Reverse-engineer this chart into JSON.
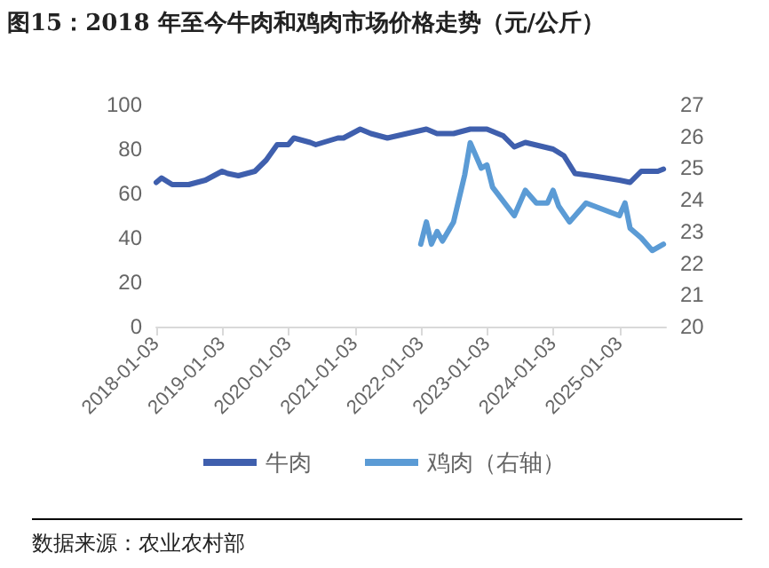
{
  "chart_data": {
    "type": "line",
    "title": "图15：2018 年至今牛肉和鸡肉市场价格走势（元/公斤）",
    "annotations": [
      "数据来源：农业农村部"
    ],
    "xlim": [
      "2018-01-03",
      "2025-09-15"
    ],
    "xticks": [
      "2018-01-03",
      "2019-01-03",
      "2020-01-03",
      "2021-01-03",
      "2022-01-03",
      "2023-01-03",
      "2024-01-03",
      "2025-01-03"
    ],
    "ylim": [
      0,
      100
    ],
    "yticks": [
      0,
      20,
      40,
      60,
      80,
      100
    ],
    "y2lim": [
      20,
      27
    ],
    "y2ticks": [
      20,
      21,
      22,
      23,
      24,
      25,
      26,
      27
    ],
    "grid": false,
    "legend": "bottom",
    "marker": "none",
    "line_style": "solid",
    "series": [
      {
        "name": "牛肉",
        "color": "#3f5fad",
        "x": [
          "2018-01-03",
          "2018-02",
          "2018-04",
          "2018-07",
          "2018-10",
          "2019-01",
          "2019-02",
          "2019-04",
          "2019-07",
          "2019-09",
          "2019-11",
          "2020-01",
          "2020-02",
          "2020-05",
          "2020-06",
          "2020-10",
          "2020-11",
          "2021-02",
          "2021-04",
          "2021-07",
          "2022-02",
          "2022-04",
          "2022-07",
          "2022-10",
          "2023-01",
          "2023-04",
          "2023-06",
          "2023-08",
          "2024-01",
          "2024-03",
          "2024-05",
          "2024-08",
          "2025-01",
          "2025-03",
          "2025-05",
          "2025-08",
          "2025-09"
        ],
        "values": [
          65,
          67,
          64,
          64,
          66,
          70,
          69,
          68,
          70,
          75,
          82,
          82,
          85,
          83,
          82,
          85,
          85,
          89,
          87,
          85,
          89,
          87,
          87,
          89,
          89,
          86,
          81,
          83,
          80,
          77,
          69,
          68,
          66,
          65,
          70,
          70,
          71
        ]
      },
      {
        "name": "鸡肉（右轴）",
        "color": "#5b9bd5",
        "axis": "y2",
        "x": [
          "2022-01",
          "2022-02",
          "2022-03",
          "2022-04",
          "2022-05",
          "2022-07",
          "2022-09",
          "2022-10",
          "2022-12",
          "2023-01",
          "2023-02",
          "2023-06",
          "2023-08",
          "2023-10",
          "2023-12",
          "2024-01",
          "2024-02",
          "2024-04",
          "2024-07",
          "2025-01",
          "2025-02",
          "2025-03",
          "2025-05",
          "2025-07",
          "2025-09"
        ],
        "values": [
          22.6,
          23.3,
          22.6,
          23.0,
          22.7,
          23.3,
          24.8,
          25.8,
          25.0,
          25.1,
          24.4,
          23.5,
          24.3,
          23.9,
          23.9,
          24.3,
          23.8,
          23.3,
          23.9,
          23.5,
          23.9,
          23.1,
          22.8,
          22.4,
          22.6
        ]
      }
    ]
  }
}
